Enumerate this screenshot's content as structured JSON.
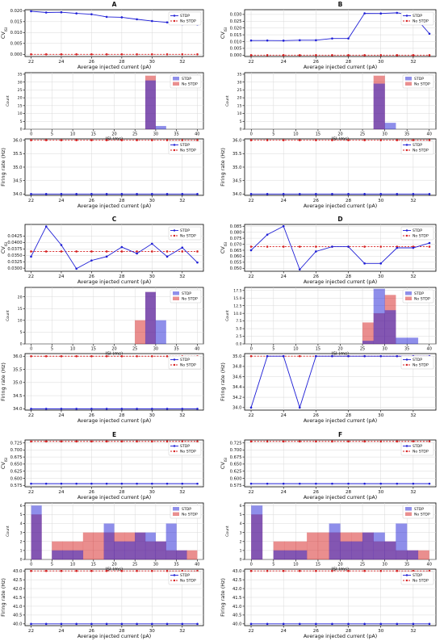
{
  "colors": {
    "stdp": "#1f1fd6",
    "nostdp": "#d62020",
    "overlap": "#9b2a6a",
    "grid": "#d9d9d9"
  },
  "legend": [
    "STDP",
    "No STDP"
  ],
  "labels": {
    "cv_ylabel": "CV",
    "cv_sub": "ISI",
    "cv_xlabel": "Average injected current (pA)",
    "hist_ylabel": "Count",
    "hist_xlabel": "ISI (ms)",
    "rate_ylabel": "Firing rate (Hz)",
    "rate_xlabel": "Average injected current (pA)"
  },
  "chart_data": [
    {
      "panel": "A",
      "cv": {
        "type": "line",
        "x": [
          22,
          23,
          24,
          25,
          26,
          27,
          28,
          29,
          30,
          31,
          32,
          33
        ],
        "stdp": [
          0.0198,
          0.0192,
          0.0193,
          0.0188,
          0.0184,
          0.0172,
          0.017,
          0.0161,
          0.0153,
          0.0147,
          0.0138,
          0.0137
        ],
        "nostdp": [
          0,
          0,
          0,
          0,
          0,
          0,
          0,
          0,
          0,
          0,
          0,
          0
        ],
        "ylim": [
          -0.001,
          0.0205
        ],
        "yticks": [
          "0.000",
          "0.005",
          "0.010",
          "0.015",
          "0.020"
        ],
        "ytickvals": [
          0,
          0.005,
          0.01,
          0.015,
          0.02
        ]
      },
      "hist": {
        "type": "bar",
        "edges": [
          0,
          2.5,
          5,
          7.5,
          10,
          12.5,
          15,
          17.5,
          20,
          22.5,
          25,
          27.5,
          30,
          32.5,
          35,
          37.5,
          40
        ],
        "stdp": [
          0,
          0,
          0,
          0,
          0,
          0,
          0,
          0,
          0,
          0,
          0,
          31,
          2,
          0,
          0,
          0
        ],
        "nostdp": [
          0,
          0,
          0,
          0,
          0,
          0,
          0,
          0,
          0,
          0,
          0,
          34,
          0,
          0,
          0,
          0
        ],
        "ylim": [
          0,
          36
        ],
        "yticks": [
          "0",
          "5",
          "10",
          "15",
          "20",
          "25",
          "30",
          "35"
        ],
        "ytickvals": [
          0,
          5,
          10,
          15,
          20,
          25,
          30,
          35
        ]
      },
      "rate": {
        "type": "line",
        "x": [
          22,
          23,
          24,
          25,
          26,
          27,
          28,
          29,
          30,
          31,
          32,
          33
        ],
        "stdp": [
          34,
          34,
          34,
          34,
          34,
          34,
          34,
          34,
          34,
          34,
          34,
          34
        ],
        "nostdp": [
          36,
          36,
          36,
          36,
          36,
          36,
          36,
          36,
          36,
          36,
          36,
          36
        ],
        "ylim": [
          33.95,
          36.05
        ],
        "yticks": [
          "34.0",
          "34.5",
          "35.0",
          "35.5",
          "36.0"
        ],
        "ytickvals": [
          34,
          34.5,
          35,
          35.5,
          36
        ]
      }
    },
    {
      "panel": "B",
      "cv": {
        "type": "line",
        "x": [
          22,
          23,
          24,
          25,
          26,
          27,
          28,
          29,
          30,
          31,
          32,
          33
        ],
        "stdp": [
          0.0108,
          0.0108,
          0.0107,
          0.011,
          0.011,
          0.0123,
          0.0123,
          0.0308,
          0.0307,
          0.0312,
          0.0296,
          0.0158
        ],
        "nostdp": [
          0,
          0,
          0,
          0,
          0,
          0,
          0,
          0,
          0,
          0,
          0,
          0
        ],
        "ylim": [
          -0.001,
          0.0335
        ],
        "yticks": [
          "0.000",
          "0.005",
          "0.010",
          "0.015",
          "0.020",
          "0.025",
          "0.030"
        ],
        "ytickvals": [
          0,
          0.005,
          0.01,
          0.015,
          0.02,
          0.025,
          0.03
        ]
      },
      "hist": {
        "type": "bar",
        "edges": [
          0,
          2.5,
          5,
          7.5,
          10,
          12.5,
          15,
          17.5,
          20,
          22.5,
          25,
          27.5,
          30,
          32.5,
          35,
          37.5,
          40
        ],
        "stdp": [
          0,
          0,
          0,
          0,
          0,
          0,
          0,
          0,
          0,
          0,
          0,
          29,
          4,
          0,
          0,
          0
        ],
        "nostdp": [
          0,
          0,
          0,
          0,
          0,
          0,
          0,
          0,
          0,
          0,
          0,
          34,
          0,
          0,
          0,
          0
        ],
        "ylim": [
          0,
          36
        ],
        "yticks": [
          "0",
          "5",
          "10",
          "15",
          "20",
          "25",
          "30",
          "35"
        ],
        "ytickvals": [
          0,
          5,
          10,
          15,
          20,
          25,
          30,
          35
        ]
      },
      "rate": {
        "type": "line",
        "x": [
          22,
          23,
          24,
          25,
          26,
          27,
          28,
          29,
          30,
          31,
          32,
          33
        ],
        "stdp": [
          34,
          34,
          34,
          34,
          34,
          34,
          34,
          34,
          34,
          34,
          34,
          34
        ],
        "nostdp": [
          36,
          36,
          36,
          36,
          36,
          36,
          36,
          36,
          36,
          36,
          36,
          36
        ],
        "ylim": [
          33.95,
          36.05
        ],
        "yticks": [
          "34.0",
          "34.5",
          "35.0",
          "35.5",
          "36.0"
        ],
        "ytickvals": [
          34,
          34.5,
          35,
          35.5,
          36
        ]
      }
    },
    {
      "panel": "C",
      "cv": {
        "type": "line",
        "x": [
          22,
          23,
          24,
          25,
          26,
          27,
          28,
          29,
          30,
          31,
          32,
          33
        ],
        "stdp": [
          0.0345,
          0.0462,
          0.039,
          0.0298,
          0.033,
          0.0345,
          0.0382,
          0.0357,
          0.0395,
          0.0345,
          0.038,
          0.0322
        ],
        "nostdp": [
          0.0365,
          0.0365,
          0.0365,
          0.0365,
          0.0365,
          0.0365,
          0.0365,
          0.0365,
          0.0365,
          0.0365,
          0.0365,
          0.0365
        ],
        "ylim": [
          0.0288,
          0.047
        ],
        "yticks": [
          "0.0300",
          "0.0325",
          "0.0350",
          "0.0375",
          "0.0400",
          "0.0425"
        ],
        "ytickvals": [
          0.03,
          0.0325,
          0.035,
          0.0375,
          0.04,
          0.0425
        ]
      },
      "hist": {
        "type": "bar",
        "edges": [
          0,
          2.5,
          5,
          7.5,
          10,
          12.5,
          15,
          17.5,
          20,
          22.5,
          25,
          27.5,
          30,
          32.5,
          35,
          37.5,
          40
        ],
        "stdp": [
          0,
          0,
          0,
          0,
          0,
          0,
          0,
          0,
          0,
          0,
          0,
          22,
          10,
          0,
          0,
          0
        ],
        "nostdp": [
          0,
          0,
          0,
          0,
          0,
          0,
          0,
          0,
          0,
          0,
          10,
          22,
          0,
          0,
          0,
          0
        ],
        "ylim": [
          0,
          24
        ],
        "yticks": [
          "0",
          "5",
          "10",
          "15",
          "20"
        ],
        "ytickvals": [
          0,
          5,
          10,
          15,
          20
        ]
      },
      "rate": {
        "type": "line",
        "x": [
          22,
          23,
          24,
          25,
          26,
          27,
          28,
          29,
          30,
          31,
          32,
          33
        ],
        "stdp": [
          34,
          34,
          34,
          34,
          34,
          34,
          34,
          34,
          34,
          34,
          34,
          34
        ],
        "nostdp": [
          36,
          36,
          36,
          36,
          36,
          36,
          36,
          36,
          36,
          36,
          36,
          36
        ],
        "ylim": [
          33.95,
          36.1
        ],
        "yticks": [
          "34.0",
          "34.5",
          "35.0",
          "35.5",
          "36.0"
        ],
        "ytickvals": [
          34,
          34.5,
          35,
          35.5,
          36
        ]
      }
    },
    {
      "panel": "D",
      "cv": {
        "type": "line",
        "x": [
          22,
          23,
          24,
          25,
          26,
          27,
          28,
          29,
          30,
          31,
          32,
          33
        ],
        "stdp": [
          0.065,
          0.078,
          0.085,
          0.049,
          0.064,
          0.068,
          0.068,
          0.054,
          0.054,
          0.067,
          0.067,
          0.071
        ],
        "nostdp": [
          0.068,
          0.068,
          0.068,
          0.068,
          0.068,
          0.068,
          0.068,
          0.068,
          0.068,
          0.068,
          0.068,
          0.068
        ],
        "ylim": [
          0.0475,
          0.0865
        ],
        "yticks": [
          "0.050",
          "0.055",
          "0.060",
          "0.065",
          "0.070",
          "0.075",
          "0.080",
          "0.085"
        ],
        "ytickvals": [
          0.05,
          0.055,
          0.06,
          0.065,
          0.07,
          0.075,
          0.08,
          0.085
        ]
      },
      "hist": {
        "type": "bar",
        "edges": [
          0,
          2.5,
          5,
          7.5,
          10,
          12.5,
          15,
          17.5,
          20,
          22.5,
          25,
          27.5,
          30,
          32.5,
          35,
          37.5,
          40
        ],
        "stdp": [
          0,
          0,
          0,
          0,
          0,
          0,
          0,
          0,
          0,
          0,
          1,
          18,
          11,
          2,
          2,
          0
        ],
        "nostdp": [
          0,
          0,
          0,
          0,
          0,
          0,
          0,
          0,
          0,
          0,
          7,
          10,
          16,
          0,
          0,
          0
        ],
        "ylim": [
          0,
          18.5
        ],
        "yticks": [
          "0.0",
          "2.5",
          "5.0",
          "7.5",
          "10.0",
          "12.5",
          "15.0",
          "17.5"
        ],
        "ytickvals": [
          0,
          2.5,
          5,
          7.5,
          10,
          12.5,
          15,
          17.5
        ]
      },
      "rate": {
        "type": "line",
        "x": [
          22,
          23,
          24,
          25,
          26,
          27,
          28,
          29,
          30,
          31,
          32,
          33
        ],
        "stdp": [
          34,
          35,
          35,
          34,
          35,
          35,
          35,
          35,
          35,
          35,
          35,
          35
        ],
        "nostdp": [
          35,
          35,
          35,
          35,
          35,
          35,
          35,
          35,
          35,
          35,
          35,
          35
        ],
        "ylim": [
          33.95,
          35.05
        ],
        "yticks": [
          "34.0",
          "34.2",
          "34.4",
          "34.6",
          "34.8",
          "35.0"
        ],
        "ytickvals": [
          34,
          34.2,
          34.4,
          34.6,
          34.8,
          35
        ]
      }
    },
    {
      "panel": "E",
      "cv": {
        "type": "line",
        "x": [
          22,
          23,
          24,
          25,
          26,
          27,
          28,
          29,
          30,
          31,
          32,
          33
        ],
        "stdp": [
          0.581,
          0.581,
          0.581,
          0.581,
          0.581,
          0.581,
          0.581,
          0.581,
          0.581,
          0.581,
          0.581,
          0.581
        ],
        "nostdp": [
          0.73,
          0.73,
          0.73,
          0.73,
          0.73,
          0.73,
          0.73,
          0.73,
          0.73,
          0.73,
          0.73,
          0.73
        ],
        "ylim": [
          0.57,
          0.735
        ],
        "yticks": [
          "0.575",
          "0.600",
          "0.625",
          "0.650",
          "0.675",
          "0.700",
          "0.725"
        ],
        "ytickvals": [
          0.575,
          0.6,
          0.625,
          0.65,
          0.675,
          0.7,
          0.725
        ]
      },
      "hist": {
        "type": "bar",
        "edges": [
          0,
          2.5,
          5,
          7.5,
          10,
          12.5,
          15,
          17.5,
          20,
          22.5,
          25,
          27.5,
          30,
          32.5,
          35,
          37.5,
          40
        ],
        "stdp": [
          6,
          0,
          1,
          1,
          1,
          0,
          0,
          4,
          2,
          2,
          3,
          3,
          2,
          4,
          1,
          0
        ],
        "nostdp": [
          5,
          0,
          2,
          2,
          2,
          3,
          3,
          3,
          3,
          3,
          3,
          2,
          2,
          1,
          1,
          1
        ],
        "ylim": [
          0,
          6.3
        ],
        "yticks": [
          "0",
          "1",
          "2",
          "3",
          "4",
          "5",
          "6"
        ],
        "ytickvals": [
          0,
          1,
          2,
          3,
          4,
          5,
          6
        ]
      },
      "rate": {
        "type": "line",
        "x": [
          22,
          23,
          24,
          25,
          26,
          27,
          28,
          29,
          30,
          31,
          32,
          33
        ],
        "stdp": [
          40,
          40,
          40,
          40,
          40,
          40,
          40,
          40,
          40,
          40,
          40,
          40
        ],
        "nostdp": [
          43,
          43,
          43,
          43,
          43,
          43,
          43,
          43,
          43,
          43,
          43,
          43
        ],
        "ylim": [
          39.9,
          43.1
        ],
        "yticks": [
          "40.0",
          "40.5",
          "41.0",
          "41.5",
          "42.0",
          "42.5",
          "43.0"
        ],
        "ytickvals": [
          40,
          40.5,
          41,
          41.5,
          42,
          42.5,
          43
        ]
      }
    },
    {
      "panel": "F",
      "cv": {
        "type": "line",
        "x": [
          22,
          23,
          24,
          25,
          26,
          27,
          28,
          29,
          30,
          31,
          32,
          33
        ],
        "stdp": [
          0.581,
          0.581,
          0.581,
          0.581,
          0.581,
          0.581,
          0.581,
          0.581,
          0.581,
          0.581,
          0.581,
          0.581
        ],
        "nostdp": [
          0.73,
          0.73,
          0.73,
          0.73,
          0.73,
          0.73,
          0.73,
          0.73,
          0.73,
          0.73,
          0.73,
          0.73
        ],
        "ylim": [
          0.57,
          0.735
        ],
        "yticks": [
          "0.575",
          "0.600",
          "0.625",
          "0.650",
          "0.675",
          "0.700",
          "0.725"
        ],
        "ytickvals": [
          0.575,
          0.6,
          0.625,
          0.65,
          0.675,
          0.7,
          0.725
        ]
      },
      "hist": {
        "type": "bar",
        "edges": [
          0,
          2.5,
          5,
          7.5,
          10,
          12.5,
          15,
          17.5,
          20,
          22.5,
          25,
          27.5,
          30,
          32.5,
          35,
          37.5,
          40
        ],
        "stdp": [
          6,
          0,
          1,
          1,
          1,
          0,
          0,
          4,
          2,
          2,
          3,
          3,
          2,
          4,
          1,
          0
        ],
        "nostdp": [
          5,
          0,
          2,
          2,
          2,
          3,
          3,
          3,
          3,
          3,
          3,
          2,
          2,
          1,
          1,
          1
        ],
        "ylim": [
          0,
          6.3
        ],
        "yticks": [
          "0",
          "1",
          "2",
          "3",
          "4",
          "5",
          "6"
        ],
        "ytickvals": [
          0,
          1,
          2,
          3,
          4,
          5,
          6
        ]
      },
      "rate": {
        "type": "line",
        "x": [
          22,
          23,
          24,
          25,
          26,
          27,
          28,
          29,
          30,
          31,
          32,
          33
        ],
        "stdp": [
          40,
          40,
          40,
          40,
          40,
          40,
          40,
          40,
          40,
          40,
          40,
          40
        ],
        "nostdp": [
          43,
          43,
          43,
          43,
          43,
          43,
          43,
          43,
          43,
          43,
          43,
          43
        ],
        "ylim": [
          39.9,
          43.1
        ],
        "yticks": [
          "40.0",
          "40.5",
          "41.0",
          "41.5",
          "42.0",
          "42.5",
          "43.0"
        ],
        "ytickvals": [
          40,
          40.5,
          41,
          41.5,
          42,
          42.5,
          43
        ]
      }
    }
  ],
  "axes": {
    "current_ticks": [
      22,
      24,
      26,
      28,
      30,
      32
    ],
    "current_range": [
      21.6,
      33.4
    ],
    "isi_ticks": [
      0,
      5,
      10,
      15,
      20,
      25,
      30,
      35,
      40
    ],
    "isi_range": [
      -1.5,
      41.5
    ]
  }
}
